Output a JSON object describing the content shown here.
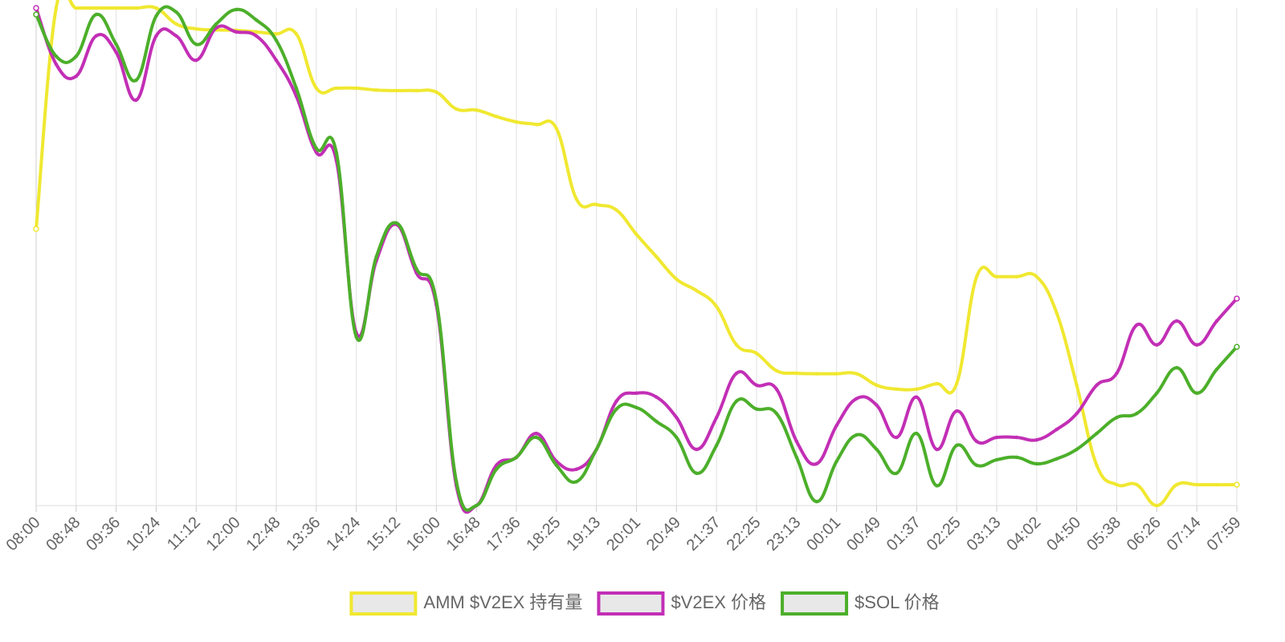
{
  "chart_data": {
    "type": "line",
    "categories": [
      "08:00",
      null,
      "08:48",
      null,
      "09:36",
      null,
      "10:24",
      null,
      "11:12",
      null,
      "12:00",
      null,
      "12:48",
      null,
      "13:36",
      null,
      "14:24",
      null,
      "15:12",
      null,
      "16:00",
      null,
      "16:48",
      null,
      "17:36",
      null,
      "18:25",
      null,
      "19:13",
      null,
      "20:01",
      null,
      "20:49",
      null,
      "21:37",
      null,
      "22:25",
      null,
      "23:13",
      null,
      "00:01",
      null,
      "00:49",
      null,
      "01:37",
      null,
      "02:25",
      null,
      "03:13",
      null,
      "04:02",
      null,
      "04:50",
      null,
      "05:38",
      null,
      "06:26",
      null,
      "07:14",
      null,
      "07:59"
    ],
    "ylim": [
      0,
      100
    ],
    "grid": true,
    "legend": "bottom",
    "series": [
      {
        "name": "AMM $V2EX 持有量",
        "color": "#f0e830",
        "values": [
          55.6,
          100,
          100,
          100,
          100,
          100,
          100,
          96.8,
          95.8,
          95.6,
          95.5,
          95.2,
          94.8,
          94.8,
          83.9,
          83.9,
          83.9,
          83.5,
          83.4,
          83.4,
          83.1,
          79.7,
          79.5,
          78.2,
          77.1,
          76.6,
          75.8,
          61.6,
          60.5,
          59.4,
          54.5,
          50,
          45.5,
          43.2,
          40,
          32.3,
          30.6,
          27.1,
          26.6,
          26.5,
          26.5,
          26.5,
          24.2,
          23.4,
          23.4,
          24.5,
          24.5,
          46,
          46,
          46,
          46,
          38.7,
          24.2,
          8.1,
          4.2,
          4.2,
          0,
          4.2,
          4.2,
          4.2,
          4.2
        ]
      },
      {
        "name": "$V2EX 价格",
        "color": "#c22fb5",
        "values": [
          100,
          88.7,
          86.3,
          94.4,
          91.1,
          81.5,
          94.4,
          94.4,
          89.5,
          96,
          95.2,
          94.4,
          89.5,
          82.3,
          71,
          69.4,
          34.7,
          49.2,
          56.5,
          46.8,
          40.3,
          4,
          0,
          8.1,
          9.7,
          14.5,
          8.9,
          7.3,
          11.3,
          21,
          22.6,
          21.8,
          17.7,
          11.3,
          17.7,
          26.6,
          24.2,
          23.4,
          12.9,
          8.4,
          16.1,
          21.5,
          20.2,
          13.7,
          21.8,
          11.3,
          19,
          12.9,
          13.7,
          13.7,
          13.2,
          15.3,
          18.5,
          24.2,
          26.6,
          36.3,
          32.3,
          37.1,
          32.3,
          37.1,
          41.6
        ]
      },
      {
        "name": "$SOL 价格",
        "color": "#4caf2a",
        "values": [
          98.7,
          90.3,
          90.3,
          98.7,
          92.7,
          85.5,
          98.4,
          99.2,
          92.7,
          96.8,
          99.7,
          97.6,
          93.5,
          83.9,
          71.8,
          71,
          33.9,
          50,
          56.8,
          47.6,
          41.1,
          4.8,
          0,
          7.3,
          9.7,
          13.7,
          8.1,
          4.8,
          11.3,
          19.4,
          19.7,
          16.9,
          13.7,
          6.5,
          12.1,
          21,
          19.4,
          18.5,
          9.7,
          0.8,
          8.9,
          14.2,
          11.3,
          6.5,
          14.5,
          4,
          12.1,
          8.1,
          9.2,
          9.7,
          8.4,
          9.4,
          11.3,
          14.5,
          17.7,
          18.5,
          22.6,
          27.7,
          22.6,
          27.4,
          31.9
        ]
      }
    ]
  }
}
